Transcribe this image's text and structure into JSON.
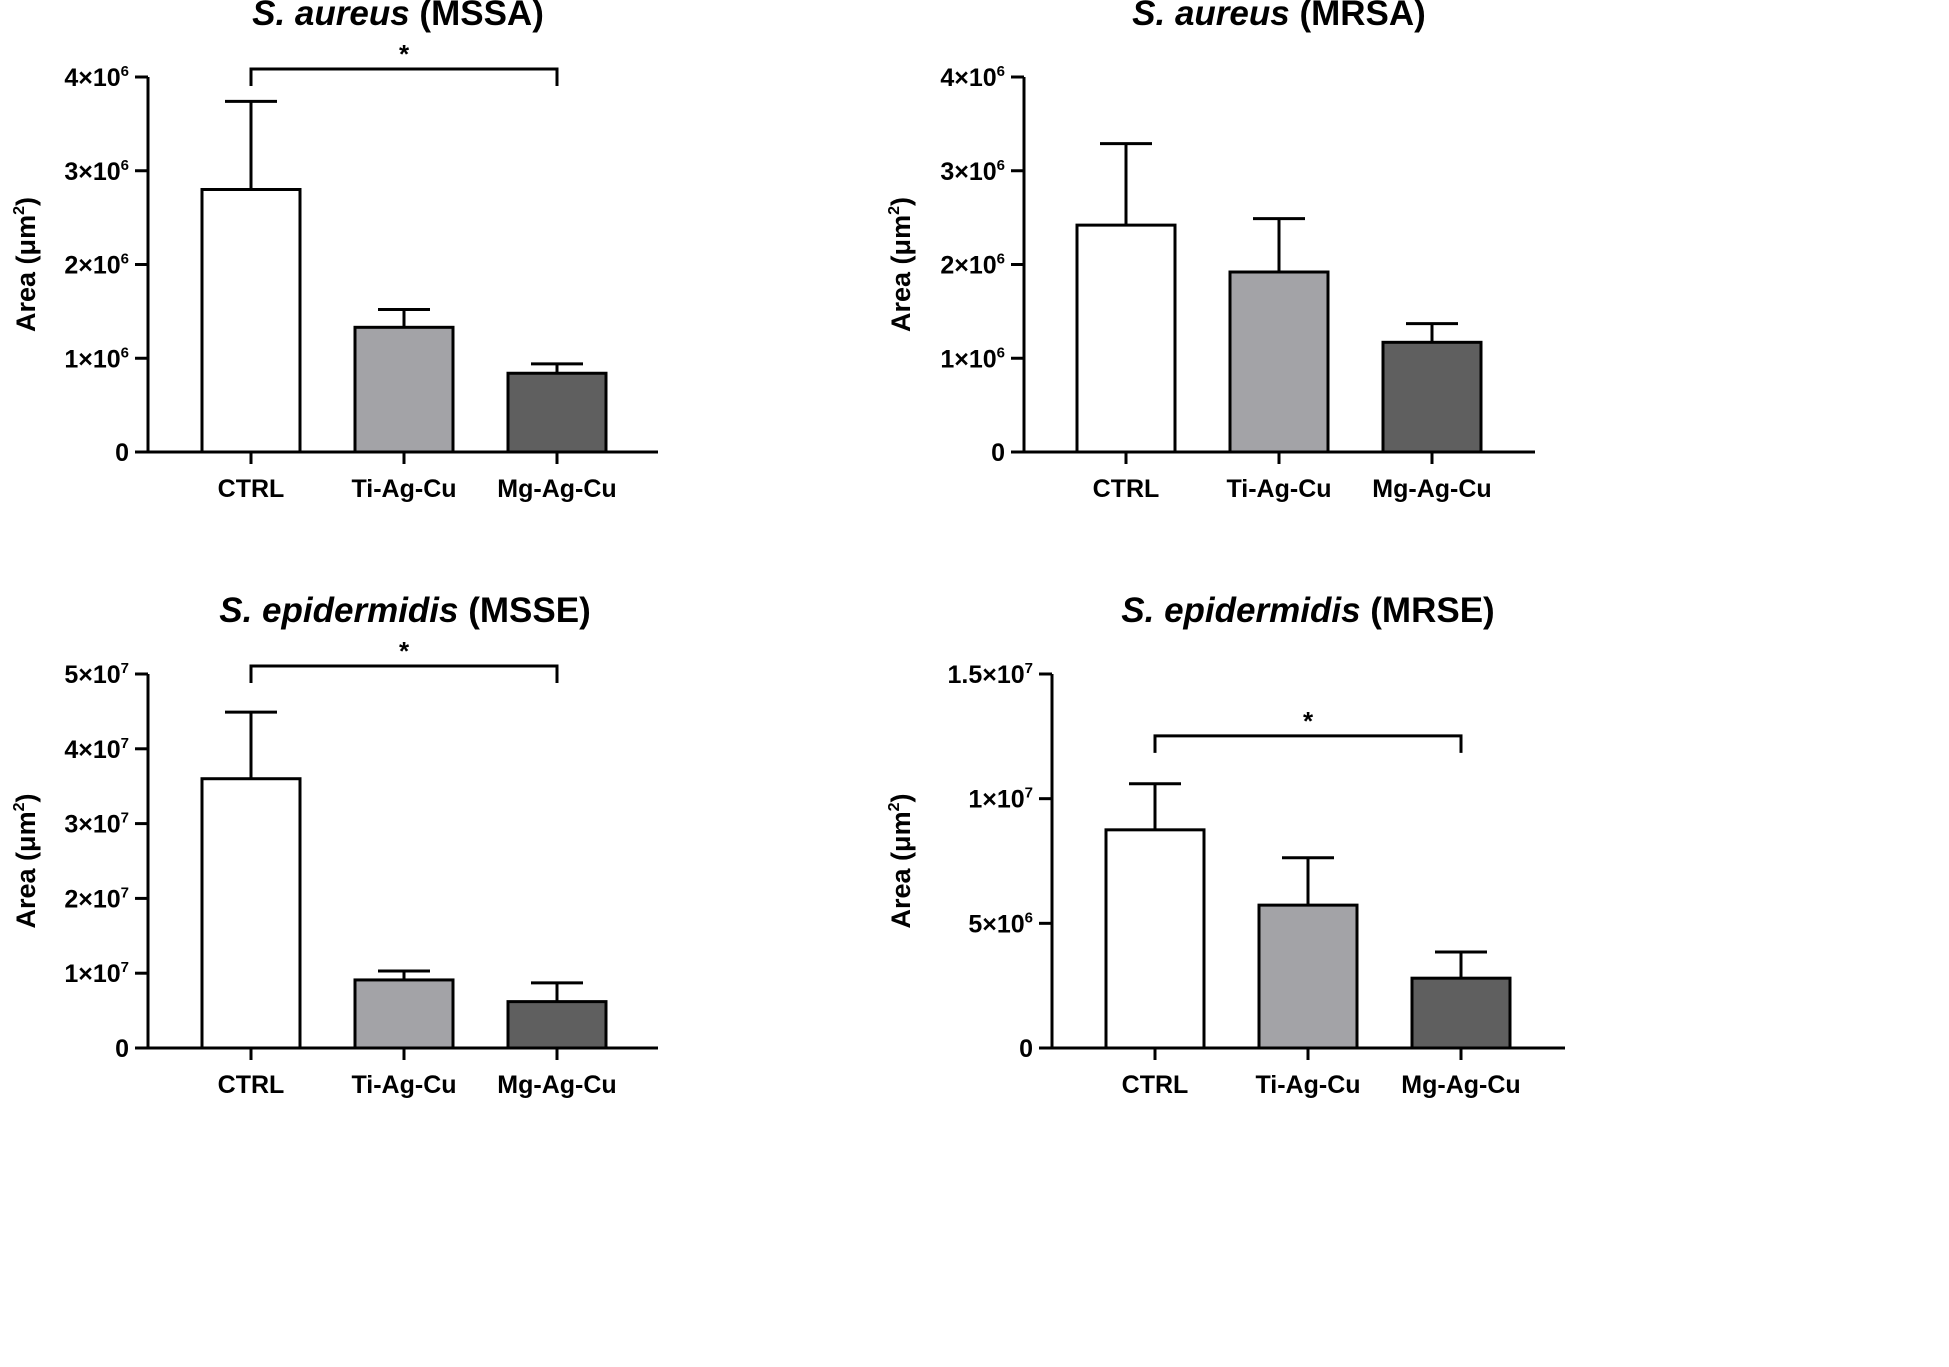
{
  "chart_data": [
    {
      "type": "bar",
      "title_species": "S. aureus",
      "title_strain": "(MSSA)",
      "ylabel_main": "Area (μm",
      "ylabel_sup": "2",
      "ylabel_end": ")",
      "categories": [
        "CTRL",
        "Ti-Ag-Cu",
        "Mg-Ag-Cu"
      ],
      "values": [
        2800000,
        1330000,
        840000
      ],
      "errors": [
        940000,
        190000,
        100000
      ],
      "colors": [
        "#ffffff",
        "#a3a3a7",
        "#5f5f5f"
      ],
      "ylim": [
        0,
        4000000
      ],
      "yticks": [
        {
          "value": 0,
          "base": "0",
          "exp": ""
        },
        {
          "value": 1000000,
          "base": "1×10",
          "exp": "6"
        },
        {
          "value": 2000000,
          "base": "2×10",
          "exp": "6"
        },
        {
          "value": 3000000,
          "base": "3×10",
          "exp": "6"
        },
        {
          "value": 4000000,
          "base": "4×10",
          "exp": "6"
        }
      ],
      "significance": {
        "from": 0,
        "to": 2,
        "value": 4000000,
        "label": "*"
      }
    },
    {
      "type": "bar",
      "title_species": "S. aureus",
      "title_strain": "(MRSA)",
      "ylabel_main": "Area (μm",
      "ylabel_sup": "2",
      "ylabel_end": ")",
      "categories": [
        "CTRL",
        "Ti-Ag-Cu",
        "Mg-Ag-Cu"
      ],
      "values": [
        2420000,
        1920000,
        1170000
      ],
      "errors": [
        870000,
        570000,
        200000
      ],
      "colors": [
        "#ffffff",
        "#a3a3a7",
        "#5f5f5f"
      ],
      "ylim": [
        0,
        4000000
      ],
      "yticks": [
        {
          "value": 0,
          "base": "0",
          "exp": ""
        },
        {
          "value": 1000000,
          "base": "1×10",
          "exp": "6"
        },
        {
          "value": 2000000,
          "base": "2×10",
          "exp": "6"
        },
        {
          "value": 3000000,
          "base": "3×10",
          "exp": "6"
        },
        {
          "value": 4000000,
          "base": "4×10",
          "exp": "6"
        }
      ],
      "significance": null
    },
    {
      "type": "bar",
      "title_species": "S. epidermidis",
      "title_strain": "(MSSE)",
      "ylabel_main": "Area (μm",
      "ylabel_sup": "2",
      "ylabel_end": ")",
      "categories": [
        "CTRL",
        "Ti-Ag-Cu",
        "Mg-Ag-Cu"
      ],
      "values": [
        36000000,
        9100000,
        6200000
      ],
      "errors": [
        8900000,
        1200000,
        2500000
      ],
      "colors": [
        "#ffffff",
        "#a3a3a7",
        "#5f5f5f"
      ],
      "ylim": [
        0,
        50000000
      ],
      "yticks": [
        {
          "value": 0,
          "base": "0",
          "exp": ""
        },
        {
          "value": 10000000,
          "base": "1×10",
          "exp": "7"
        },
        {
          "value": 20000000,
          "base": "2×10",
          "exp": "7"
        },
        {
          "value": 30000000,
          "base": "3×10",
          "exp": "7"
        },
        {
          "value": 40000000,
          "base": "4×10",
          "exp": "7"
        },
        {
          "value": 50000000,
          "base": "5×10",
          "exp": "7"
        }
      ],
      "significance": {
        "from": 0,
        "to": 2,
        "value": 50000000,
        "label": "*"
      }
    },
    {
      "type": "bar",
      "title_species": "S. epidermidis",
      "title_strain": "(MRSE)",
      "ylabel_main": "Area (μm",
      "ylabel_sup": "2",
      "ylabel_end": ")",
      "categories": [
        "CTRL",
        "Ti-Ag-Cu",
        "Mg-Ag-Cu"
      ],
      "values": [
        8750000,
        5730000,
        2800000
      ],
      "errors": [
        1850000,
        1900000,
        1050000
      ],
      "colors": [
        "#ffffff",
        "#a3a3a7",
        "#5f5f5f"
      ],
      "ylim": [
        0,
        15000000
      ],
      "yticks": [
        {
          "value": 0,
          "base": "0",
          "exp": ""
        },
        {
          "value": 5000000,
          "base": "5×10",
          "exp": "6"
        },
        {
          "value": 10000000,
          "base": "1×10",
          "exp": "7"
        },
        {
          "value": 15000000,
          "base": "1.5×10",
          "exp": "7"
        }
      ],
      "significance": {
        "from": 0,
        "to": 2,
        "value": 12200000,
        "label": "*"
      }
    }
  ]
}
